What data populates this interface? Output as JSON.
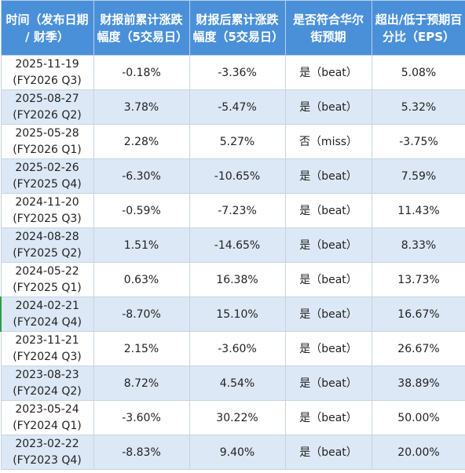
{
  "headers": [
    "时间（发布日期 / 财季）",
    "财报前累计涨跌幅度（5交易日）",
    "财报后累计涨跌幅度（5交易日）",
    "是否符合华尔街预期",
    "超出/低于预期百分比（EPS）"
  ],
  "rows": [
    {
      "date": "2025-11-19",
      "quarter": "(FY2026 Q3)",
      "pre": "-0.18%",
      "post": "-3.36%",
      "beat": "是（beat）",
      "eps": "5.08%"
    },
    {
      "date": "2025-08-27",
      "quarter": "(FY2026 Q2)",
      "pre": "3.78%",
      "post": "-5.47%",
      "beat": "是（beat）",
      "eps": "5.32%"
    },
    {
      "date": "2025-05-28",
      "quarter": "(FY2026 Q1)",
      "pre": "2.28%",
      "post": "5.27%",
      "beat": "否（miss）",
      "eps": "-3.75%"
    },
    {
      "date": "2025-02-26",
      "quarter": "(FY2025 Q4)",
      "pre": "-6.30%",
      "post": "-10.65%",
      "beat": "是（beat）",
      "eps": "7.59%"
    },
    {
      "date": "2024-11-20",
      "quarter": "(FY2025 Q3)",
      "pre": "-0.59%",
      "post": "-7.23%",
      "beat": "是（beat）",
      "eps": "11.43%"
    },
    {
      "date": "2024-08-28",
      "quarter": "(FY2025 Q2)",
      "pre": "1.51%",
      "post": "-14.65%",
      "beat": "是（beat）",
      "eps": "8.33%"
    },
    {
      "date": "2024-05-22",
      "quarter": "(FY2025 Q1)",
      "pre": "0.63%",
      "post": "16.38%",
      "beat": "是（beat）",
      "eps": "13.73%"
    },
    {
      "date": "2024-02-21",
      "quarter": "(FY2024 Q4)",
      "pre": "-8.70%",
      "post": "15.10%",
      "beat": "是（beat）",
      "eps": "16.67%"
    },
    {
      "date": "2023-11-21",
      "quarter": "(FY2024 Q3)",
      "pre": "2.15%",
      "post": "-3.60%",
      "beat": "是（beat）",
      "eps": "26.67%"
    },
    {
      "date": "2023-08-23",
      "quarter": "(FY2024 Q2)",
      "pre": "8.72%",
      "post": "4.54%",
      "beat": "是（beat）",
      "eps": "38.89%"
    },
    {
      "date": "2023-05-24",
      "quarter": "(FY2024 Q1)",
      "pre": "-3.60%",
      "post": "30.22%",
      "beat": "是（beat）",
      "eps": "50.00%"
    },
    {
      "date": "2023-02-22",
      "quarter": "(FY2023 Q4)",
      "pre": "-8.83%",
      "post": "9.40%",
      "beat": "是（beat）",
      "eps": "20.00%"
    }
  ],
  "colors": {
    "header_bg": "#4a90d9",
    "header_text": "#ffffff",
    "row_alt_bg": "#dce8f6",
    "row_bg": "#ffffff",
    "border": "#c8d3e0"
  }
}
